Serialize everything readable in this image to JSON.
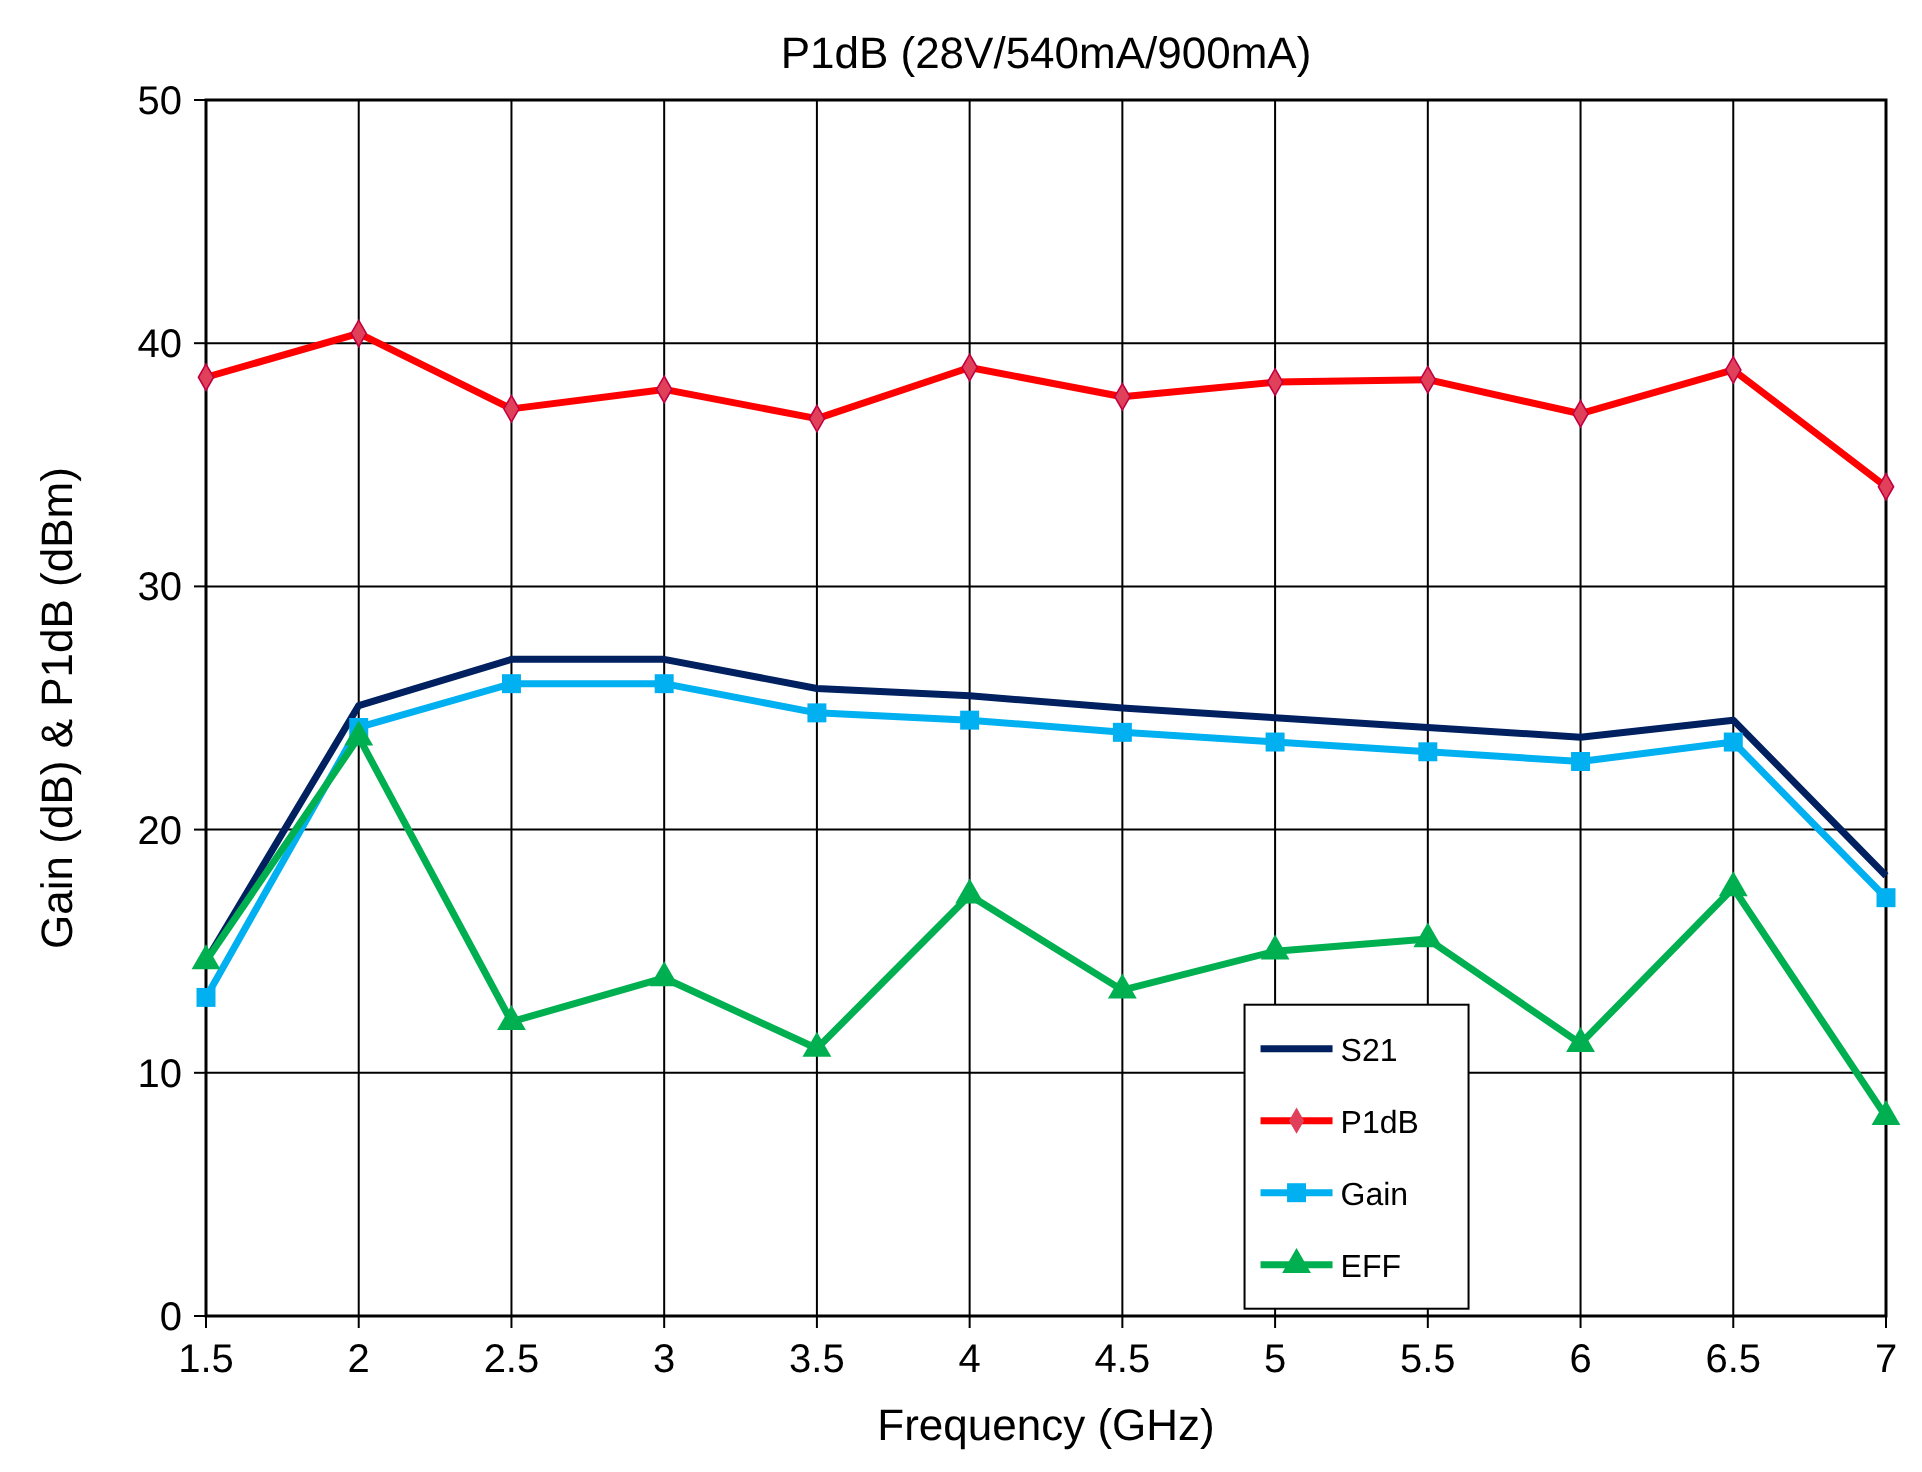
{
  "chart_data": {
    "type": "line",
    "title": "P1dB (28V/540mA/900mA)",
    "xlabel": "Frequency (GHz)",
    "ylabel": "Gain (dB) & P1dB (dBm)",
    "x": [
      1.5,
      2,
      2.5,
      3,
      3.5,
      4,
      4.5,
      5,
      5.5,
      6,
      6.5,
      7
    ],
    "xlim": [
      1.5,
      7
    ],
    "xticks": [
      1.5,
      2,
      2.5,
      3,
      3.5,
      4,
      4.5,
      5,
      5.5,
      6,
      6.5,
      7
    ],
    "ylim": [
      0,
      50
    ],
    "yticks": [
      0,
      10,
      20,
      30,
      40,
      50
    ],
    "grid": true,
    "legend": "bottom right",
    "series": [
      {
        "name": "S21",
        "color": "#002060",
        "marker": "none",
        "values": [
          14.6,
          25.1,
          27.0,
          27.0,
          25.8,
          25.5,
          25.0,
          24.6,
          24.2,
          23.8,
          24.5,
          18.1
        ]
      },
      {
        "name": "P1dB",
        "color": "#ff0000",
        "marker": "diamond",
        "values": [
          38.6,
          40.4,
          37.3,
          38.1,
          36.9,
          39.0,
          37.8,
          38.4,
          38.5,
          37.1,
          38.9,
          34.1
        ]
      },
      {
        "name": "Gain",
        "color": "#00b0f0",
        "marker": "square",
        "values": [
          13.1,
          24.2,
          26.0,
          26.0,
          24.8,
          24.5,
          24.0,
          23.6,
          23.2,
          22.8,
          23.6,
          17.2
        ]
      },
      {
        "name": "EFF",
        "color": "#00b050",
        "marker": "triangle",
        "values": [
          14.6,
          23.8,
          12.1,
          13.9,
          11.0,
          17.3,
          13.4,
          15.0,
          15.5,
          11.2,
          17.6,
          8.2
        ]
      }
    ]
  }
}
